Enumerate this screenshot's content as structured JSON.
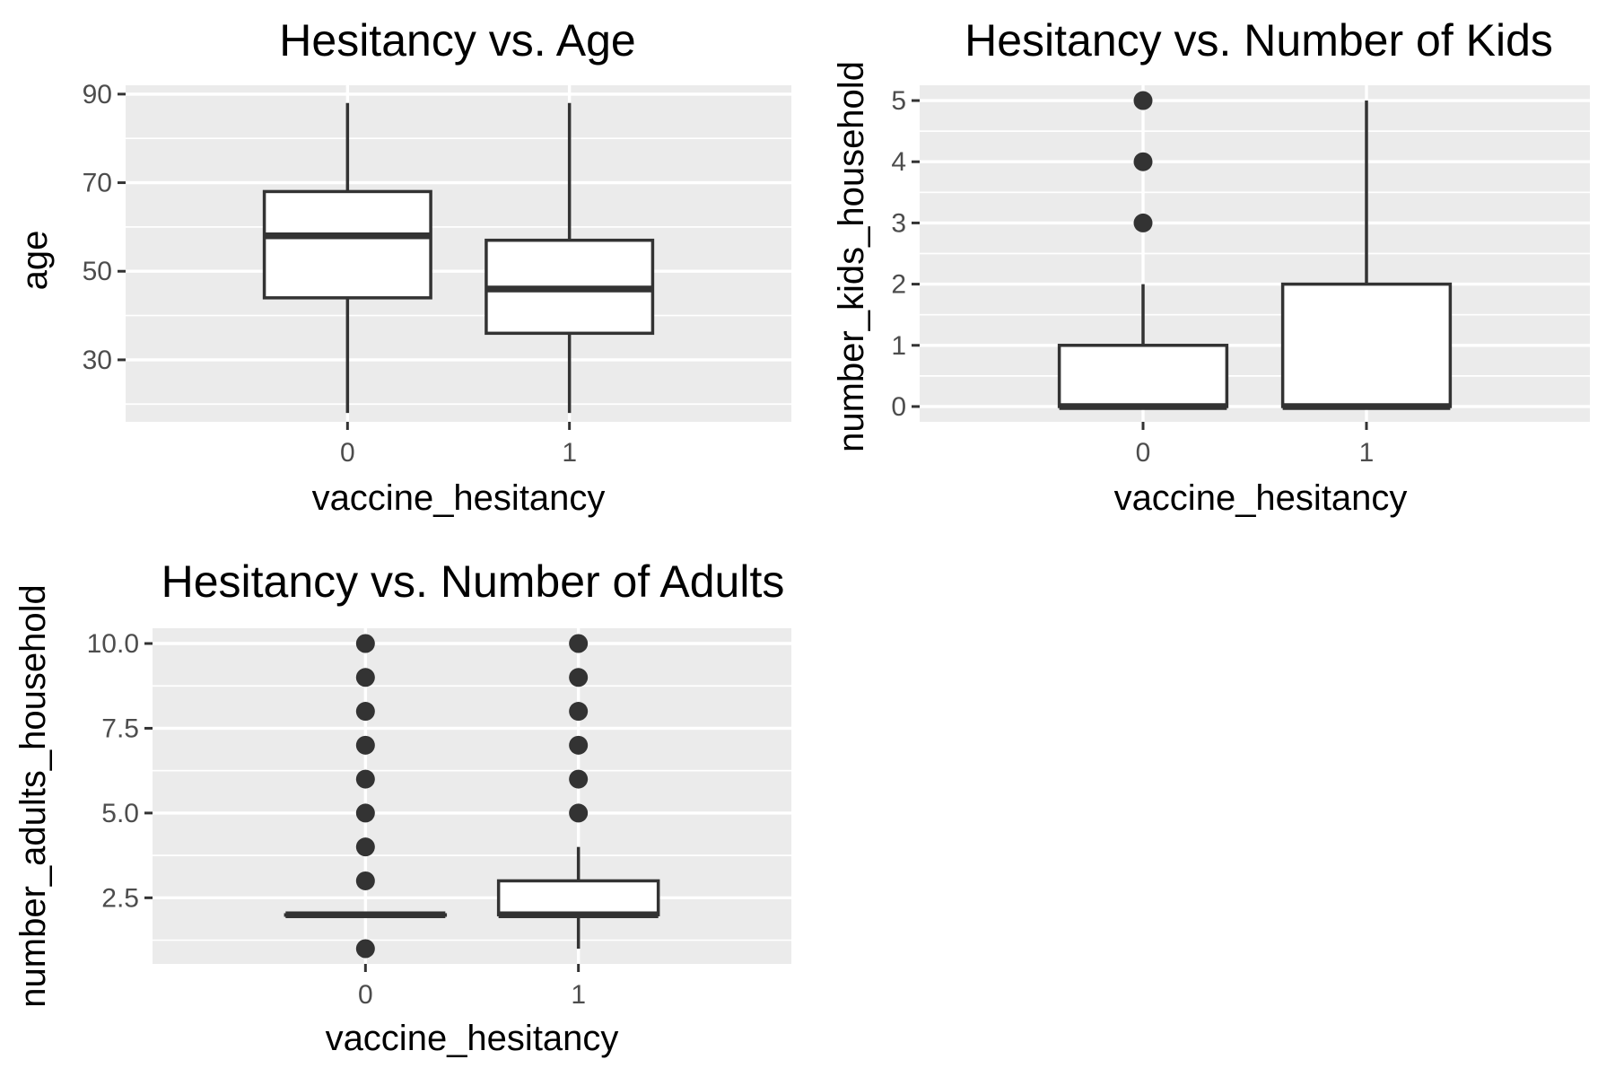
{
  "chart_data": [
    {
      "type": "box",
      "title": "Hesitancy vs. Age",
      "xlabel": "vaccine_hesitancy",
      "ylabel": "age",
      "categories": [
        "0",
        "1"
      ],
      "ylim": [
        16,
        92
      ],
      "yticks": [
        30,
        50,
        70,
        90
      ],
      "ytick_labels": [
        "30",
        "50",
        "70",
        "90"
      ],
      "boxes": [
        {
          "category": "0",
          "whisker_low": 18,
          "q1": 44,
          "median": 58,
          "q3": 68,
          "whisker_high": 88,
          "outliers": []
        },
        {
          "category": "1",
          "whisker_low": 18,
          "q1": 36,
          "median": 46,
          "q3": 57,
          "whisker_high": 88,
          "outliers": []
        }
      ]
    },
    {
      "type": "box",
      "title": "Hesitancy vs. Number of Kids",
      "xlabel": "vaccine_hesitancy",
      "ylabel": "number_kids_household",
      "categories": [
        "0",
        "1"
      ],
      "ylim": [
        -0.25,
        5.25
      ],
      "yticks": [
        0,
        1,
        2,
        3,
        4,
        5
      ],
      "ytick_labels": [
        "0",
        "1",
        "2",
        "3",
        "4",
        "5"
      ],
      "boxes": [
        {
          "category": "0",
          "whisker_low": 0,
          "q1": 0,
          "median": 0,
          "q3": 1,
          "whisker_high": 2,
          "outliers": [
            3,
            4,
            5
          ]
        },
        {
          "category": "1",
          "whisker_low": 0,
          "q1": 0,
          "median": 0,
          "q3": 2,
          "whisker_high": 5,
          "outliers": []
        }
      ]
    },
    {
      "type": "box",
      "title": "Hesitancy vs. Number of Adults",
      "xlabel": "vaccine_hesitancy",
      "ylabel": "number_adults_household",
      "categories": [
        "0",
        "1"
      ],
      "ylim": [
        0.55,
        10.45
      ],
      "yticks": [
        2.5,
        5.0,
        7.5,
        10.0
      ],
      "ytick_labels": [
        "2.5",
        "5.0",
        "7.5",
        "10.0"
      ],
      "boxes": [
        {
          "category": "0",
          "whisker_low": 2,
          "q1": 2,
          "median": 2,
          "q3": 2,
          "whisker_high": 2,
          "outliers": [
            1,
            3,
            4,
            5,
            6,
            7,
            8,
            9,
            10
          ]
        },
        {
          "category": "1",
          "whisker_low": 1,
          "q1": 2,
          "median": 2,
          "q3": 3,
          "whisker_high": 4,
          "outliers": [
            5,
            6,
            7,
            8,
            9,
            10
          ]
        }
      ]
    }
  ]
}
